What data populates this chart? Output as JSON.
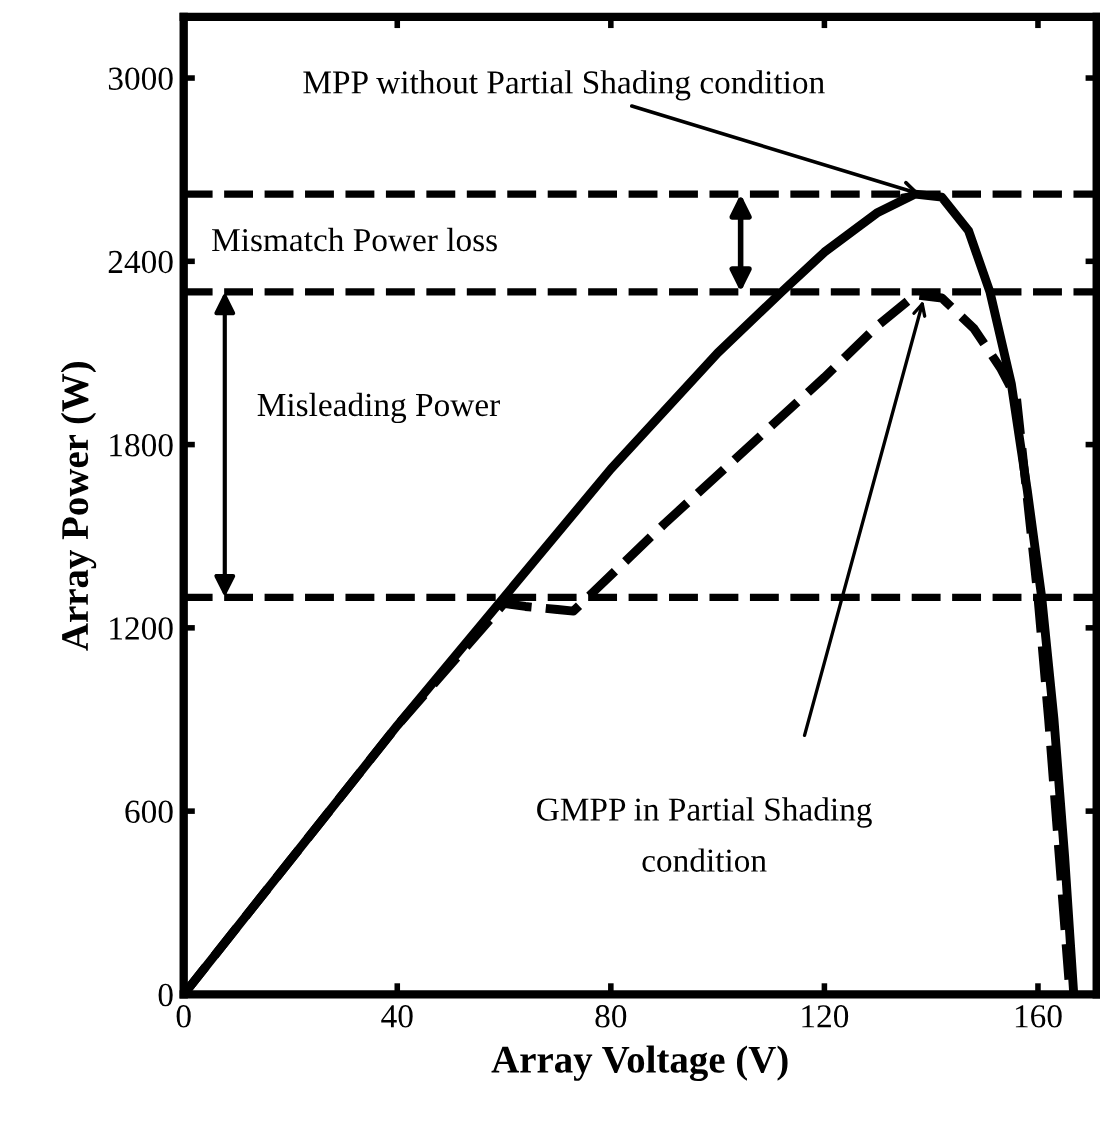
{
  "chart_data": {
    "type": "line",
    "xlabel": "Array Voltage (V)",
    "ylabel": "Array Power (W)",
    "xlim": [
      0,
      171
    ],
    "ylim": [
      0,
      3200
    ],
    "xticks": [
      0,
      40,
      80,
      120,
      160
    ],
    "yticks": [
      0,
      600,
      1200,
      1800,
      2400,
      3000
    ],
    "grid": false,
    "legend": false,
    "marker": "none",
    "series": [
      {
        "color": "#000000",
        "line_style": "solid",
        "x": [
          0,
          20,
          40,
          60,
          80,
          100,
          112,
          120,
          130,
          137,
          142,
          147,
          151,
          155,
          158,
          160.7,
          163,
          165,
          166.7
        ],
        "values": [
          0,
          440,
          880,
          1300,
          1720,
          2100,
          2300,
          2430,
          2560,
          2620,
          2610,
          2500,
          2300,
          2000,
          1650,
          1300,
          900,
          450,
          0
        ]
      },
      {
        "color": "#000000",
        "line_style": "dashed",
        "x": [
          0,
          20,
          40,
          60,
          64,
          70,
          73,
          90,
          105,
          120,
          130,
          137,
          142,
          148,
          153,
          156,
          160,
          162,
          164,
          166
        ],
        "values": [
          0,
          440,
          880,
          1280,
          1270,
          1260,
          1255,
          1540,
          1780,
          2020,
          2190,
          2290,
          2280,
          2180,
          2050,
          1950,
          1300,
          900,
          450,
          0
        ]
      }
    ],
    "ref_lines": [
      {
        "axis": "y",
        "value": 2620,
        "line_style": "dashed",
        "color": "#000000"
      },
      {
        "axis": "y",
        "value": 2300,
        "line_style": "dashed",
        "color": "#000000"
      },
      {
        "axis": "y",
        "value": 1300,
        "line_style": "dashed",
        "color": "#000000"
      }
    ],
    "annotations": [
      {
        "text": "MPP without Partial Shading condition",
        "x": 138,
        "y": 2620
      },
      "Mismatch Power loss",
      "Misleading Power",
      "GMPP in Partial Shading\ncondition"
    ]
  }
}
